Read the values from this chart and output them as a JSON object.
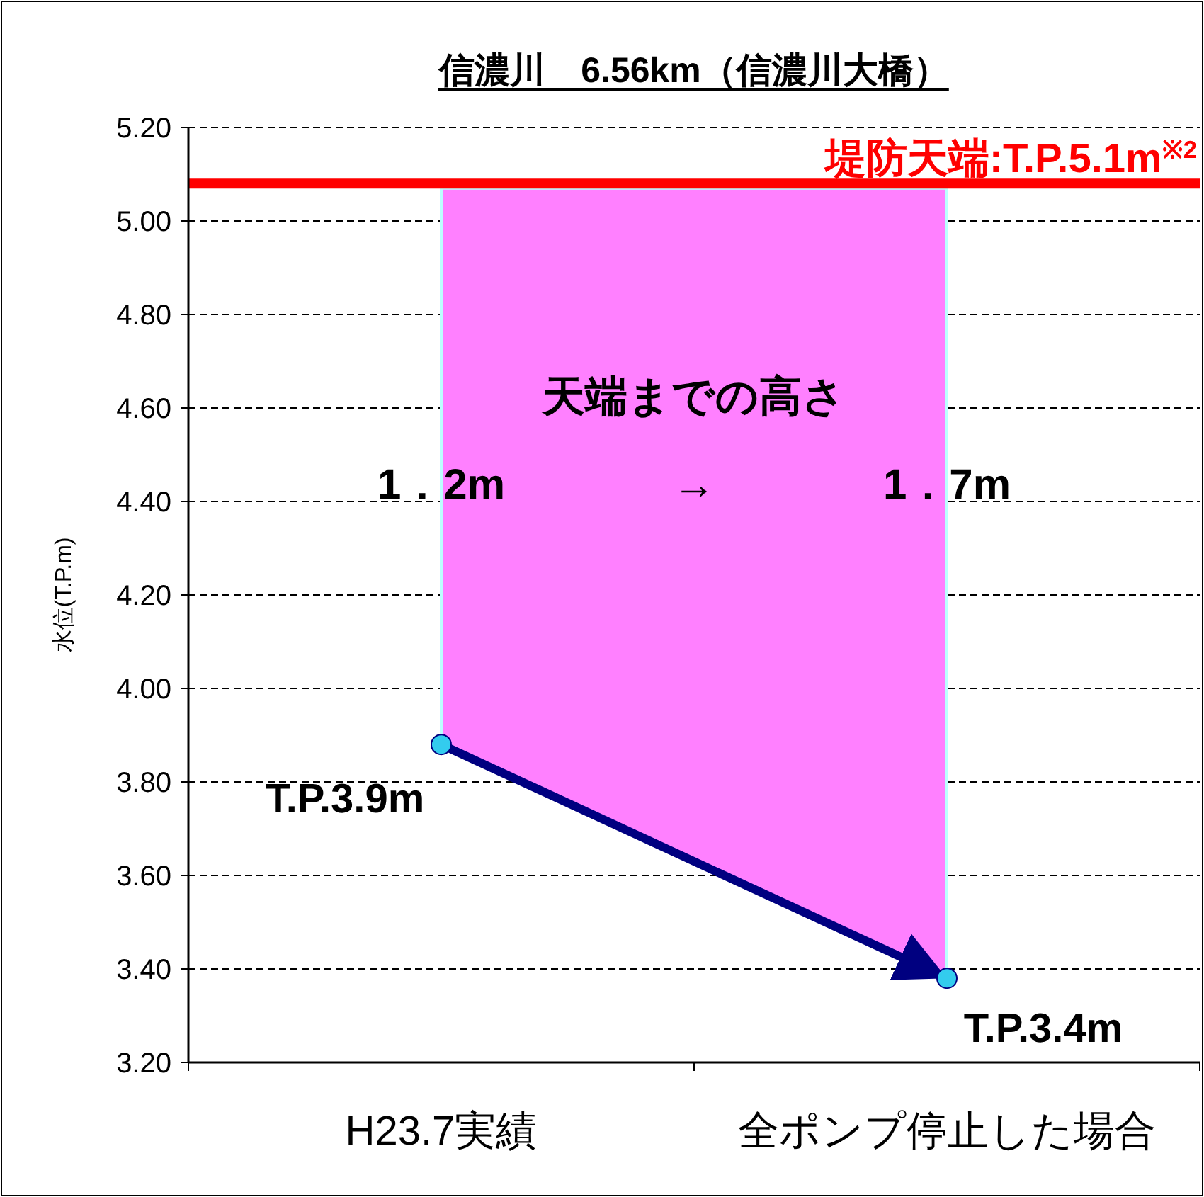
{
  "chart_data": {
    "type": "scatter",
    "title": "信濃川　6.56km（信濃川大橋）",
    "ylabel": "水位(T.P.m)",
    "categories": [
      "H23.7実績",
      "全ポンプ停止した場合"
    ],
    "ylim": [
      3.2,
      5.2
    ],
    "yticks": [
      {
        "value": 3.2,
        "label": "3.20"
      },
      {
        "value": 3.4,
        "label": "3.40"
      },
      {
        "value": 3.6,
        "label": "3.60"
      },
      {
        "value": 3.8,
        "label": "3.80"
      },
      {
        "value": 4.0,
        "label": "4.00"
      },
      {
        "value": 4.2,
        "label": "4.20"
      },
      {
        "value": 4.4,
        "label": "4.40"
      },
      {
        "value": 4.6,
        "label": "4.60"
      },
      {
        "value": 4.8,
        "label": "4.80"
      },
      {
        "value": 5.0,
        "label": "5.00"
      },
      {
        "value": 5.2,
        "label": "5.20"
      }
    ],
    "grid": "y",
    "series": [
      {
        "type": "area",
        "color": "#ff80ff",
        "values": [
          5.07,
          5.07
        ]
      },
      {
        "type": "line",
        "color": "#000080",
        "values": [
          3.88,
          3.38
        ]
      },
      {
        "color": "#33ccee",
        "values": [
          3.88,
          3.38
        ],
        "marker": "circle",
        "value_labels": [
          "T.P.3.9m",
          "T.P.3.4m"
        ]
      }
    ],
    "ref_lines": [
      {
        "axis": "y",
        "value": 5.08,
        "label": "堤防天端:T.P.5.1m$^{※2}$",
        "color": "#ff0000"
      }
    ],
    "annotations": [
      "天端までの高さ",
      "1．2m",
      "→",
      "1．7m"
    ]
  }
}
